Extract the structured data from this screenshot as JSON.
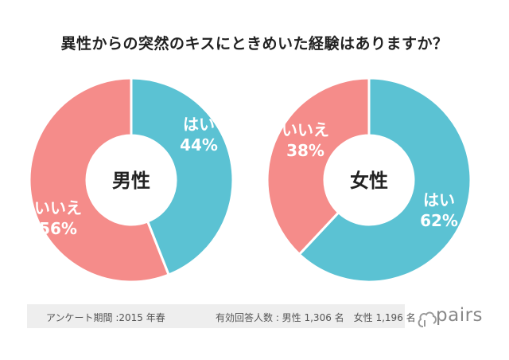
{
  "title": "異性からの突然のキスにときめいた経験はありますか？",
  "colors": {
    "yes": "#5bc2d3",
    "no": "#f58c8a",
    "label_text": "#ffffff",
    "center_text": "#222222",
    "footer_bg": "#eeeeee"
  },
  "chart_data": [
    {
      "type": "pie",
      "title": "男性",
      "slices": [
        {
          "label": "はい",
          "value": 44,
          "value_label": "44%",
          "color": "#5bc2d3"
        },
        {
          "label": "いいえ",
          "value": 56,
          "value_label": "56%",
          "color": "#f58c8a"
        }
      ]
    },
    {
      "type": "pie",
      "title": "女性",
      "slices": [
        {
          "label": "はい",
          "value": 62,
          "value_label": "62%",
          "color": "#5bc2d3"
        },
        {
          "label": "いいえ",
          "value": 38,
          "value_label": "38%",
          "color": "#f58c8a"
        }
      ]
    }
  ],
  "footer": {
    "period": "アンケート期間 :2015 年春",
    "sample": "有効回答人数 : 男性 1,306 名　女性 1,196 名"
  },
  "logo": {
    "text": "pairs"
  }
}
